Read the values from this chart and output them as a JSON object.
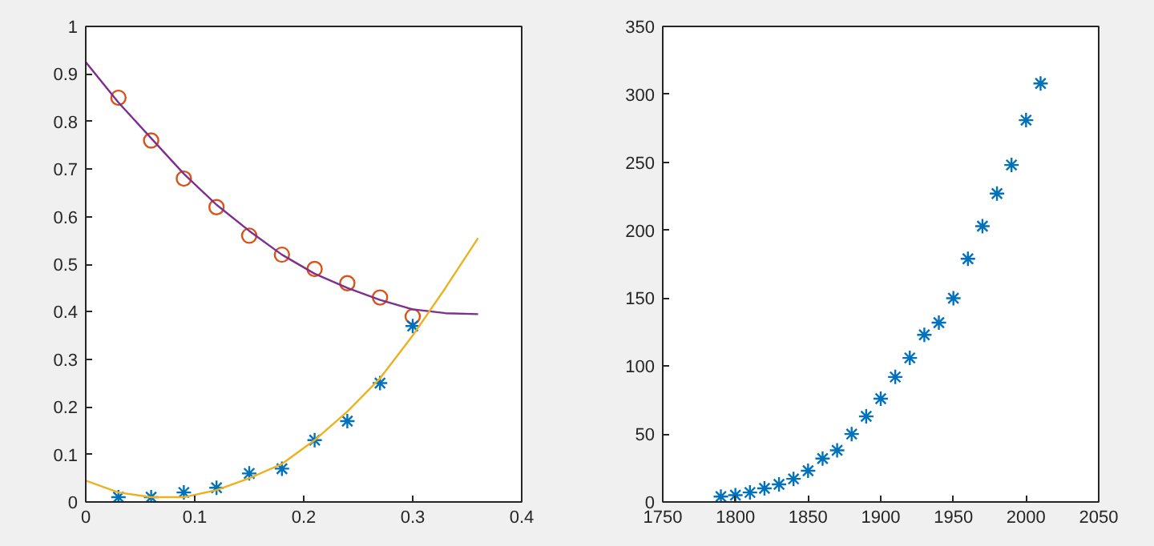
{
  "chart_data": [
    {
      "type": "scatter",
      "xlim": [
        0,
        0.4
      ],
      "ylim": [
        0,
        1
      ],
      "xticks": [
        0,
        0.1,
        0.2,
        0.3,
        0.4
      ],
      "yticks": [
        0,
        0.1,
        0.2,
        0.3,
        0.4,
        0.5,
        0.6,
        0.7,
        0.8,
        0.9,
        1
      ],
      "grid": false,
      "series": [
        {
          "marker": "circle",
          "color": "#d95319",
          "x": [
            0.03,
            0.06,
            0.09,
            0.12,
            0.15,
            0.18,
            0.21,
            0.24,
            0.27,
            0.3
          ],
          "values": [
            0.85,
            0.76,
            0.68,
            0.62,
            0.56,
            0.52,
            0.49,
            0.46,
            0.43,
            0.39
          ]
        },
        {
          "type": "line",
          "color": "#7e2f8e",
          "x": [
            0,
            0.03,
            0.06,
            0.09,
            0.12,
            0.15,
            0.18,
            0.21,
            0.24,
            0.27,
            0.3,
            0.33,
            0.36
          ],
          "values": [
            0.925,
            0.84,
            0.765,
            0.69,
            0.625,
            0.57,
            0.52,
            0.48,
            0.45,
            0.425,
            0.405,
            0.397,
            0.395
          ]
        },
        {
          "marker": "cross",
          "color": "#0072bd",
          "x": [
            0.03,
            0.06,
            0.09,
            0.12,
            0.15,
            0.18,
            0.21,
            0.24,
            0.27,
            0.3
          ],
          "values": [
            0.01,
            0.01,
            0.02,
            0.03,
            0.06,
            0.07,
            0.13,
            0.17,
            0.25,
            0.37
          ]
        },
        {
          "type": "line",
          "color": "#edb120",
          "x": [
            0,
            0.03,
            0.06,
            0.09,
            0.12,
            0.15,
            0.18,
            0.21,
            0.24,
            0.27,
            0.3,
            0.33,
            0.36
          ],
          "values": [
            0.045,
            0.02,
            0.01,
            0.01,
            0.025,
            0.05,
            0.08,
            0.13,
            0.19,
            0.26,
            0.35,
            0.45,
            0.555
          ]
        }
      ]
    },
    {
      "type": "scatter",
      "xlim": [
        1750,
        2050
      ],
      "ylim": [
        0,
        350
      ],
      "xticks": [
        1750,
        1800,
        1850,
        1900,
        1950,
        2000,
        2050
      ],
      "yticks": [
        0,
        50,
        100,
        150,
        200,
        250,
        300,
        350
      ],
      "grid": false,
      "series": [
        {
          "marker": "cross",
          "color": "#0072bd",
          "x": [
            1790,
            1800,
            1810,
            1820,
            1830,
            1840,
            1850,
            1860,
            1870,
            1880,
            1890,
            1900,
            1910,
            1920,
            1930,
            1940,
            1950,
            1960,
            1970,
            1980,
            1990,
            2000,
            2010
          ],
          "values": [
            4,
            5,
            7,
            10,
            13,
            17,
            23,
            32,
            38,
            50,
            63,
            76,
            92,
            106,
            123,
            132,
            150,
            179,
            203,
            227,
            248,
            281,
            308
          ]
        }
      ]
    }
  ]
}
